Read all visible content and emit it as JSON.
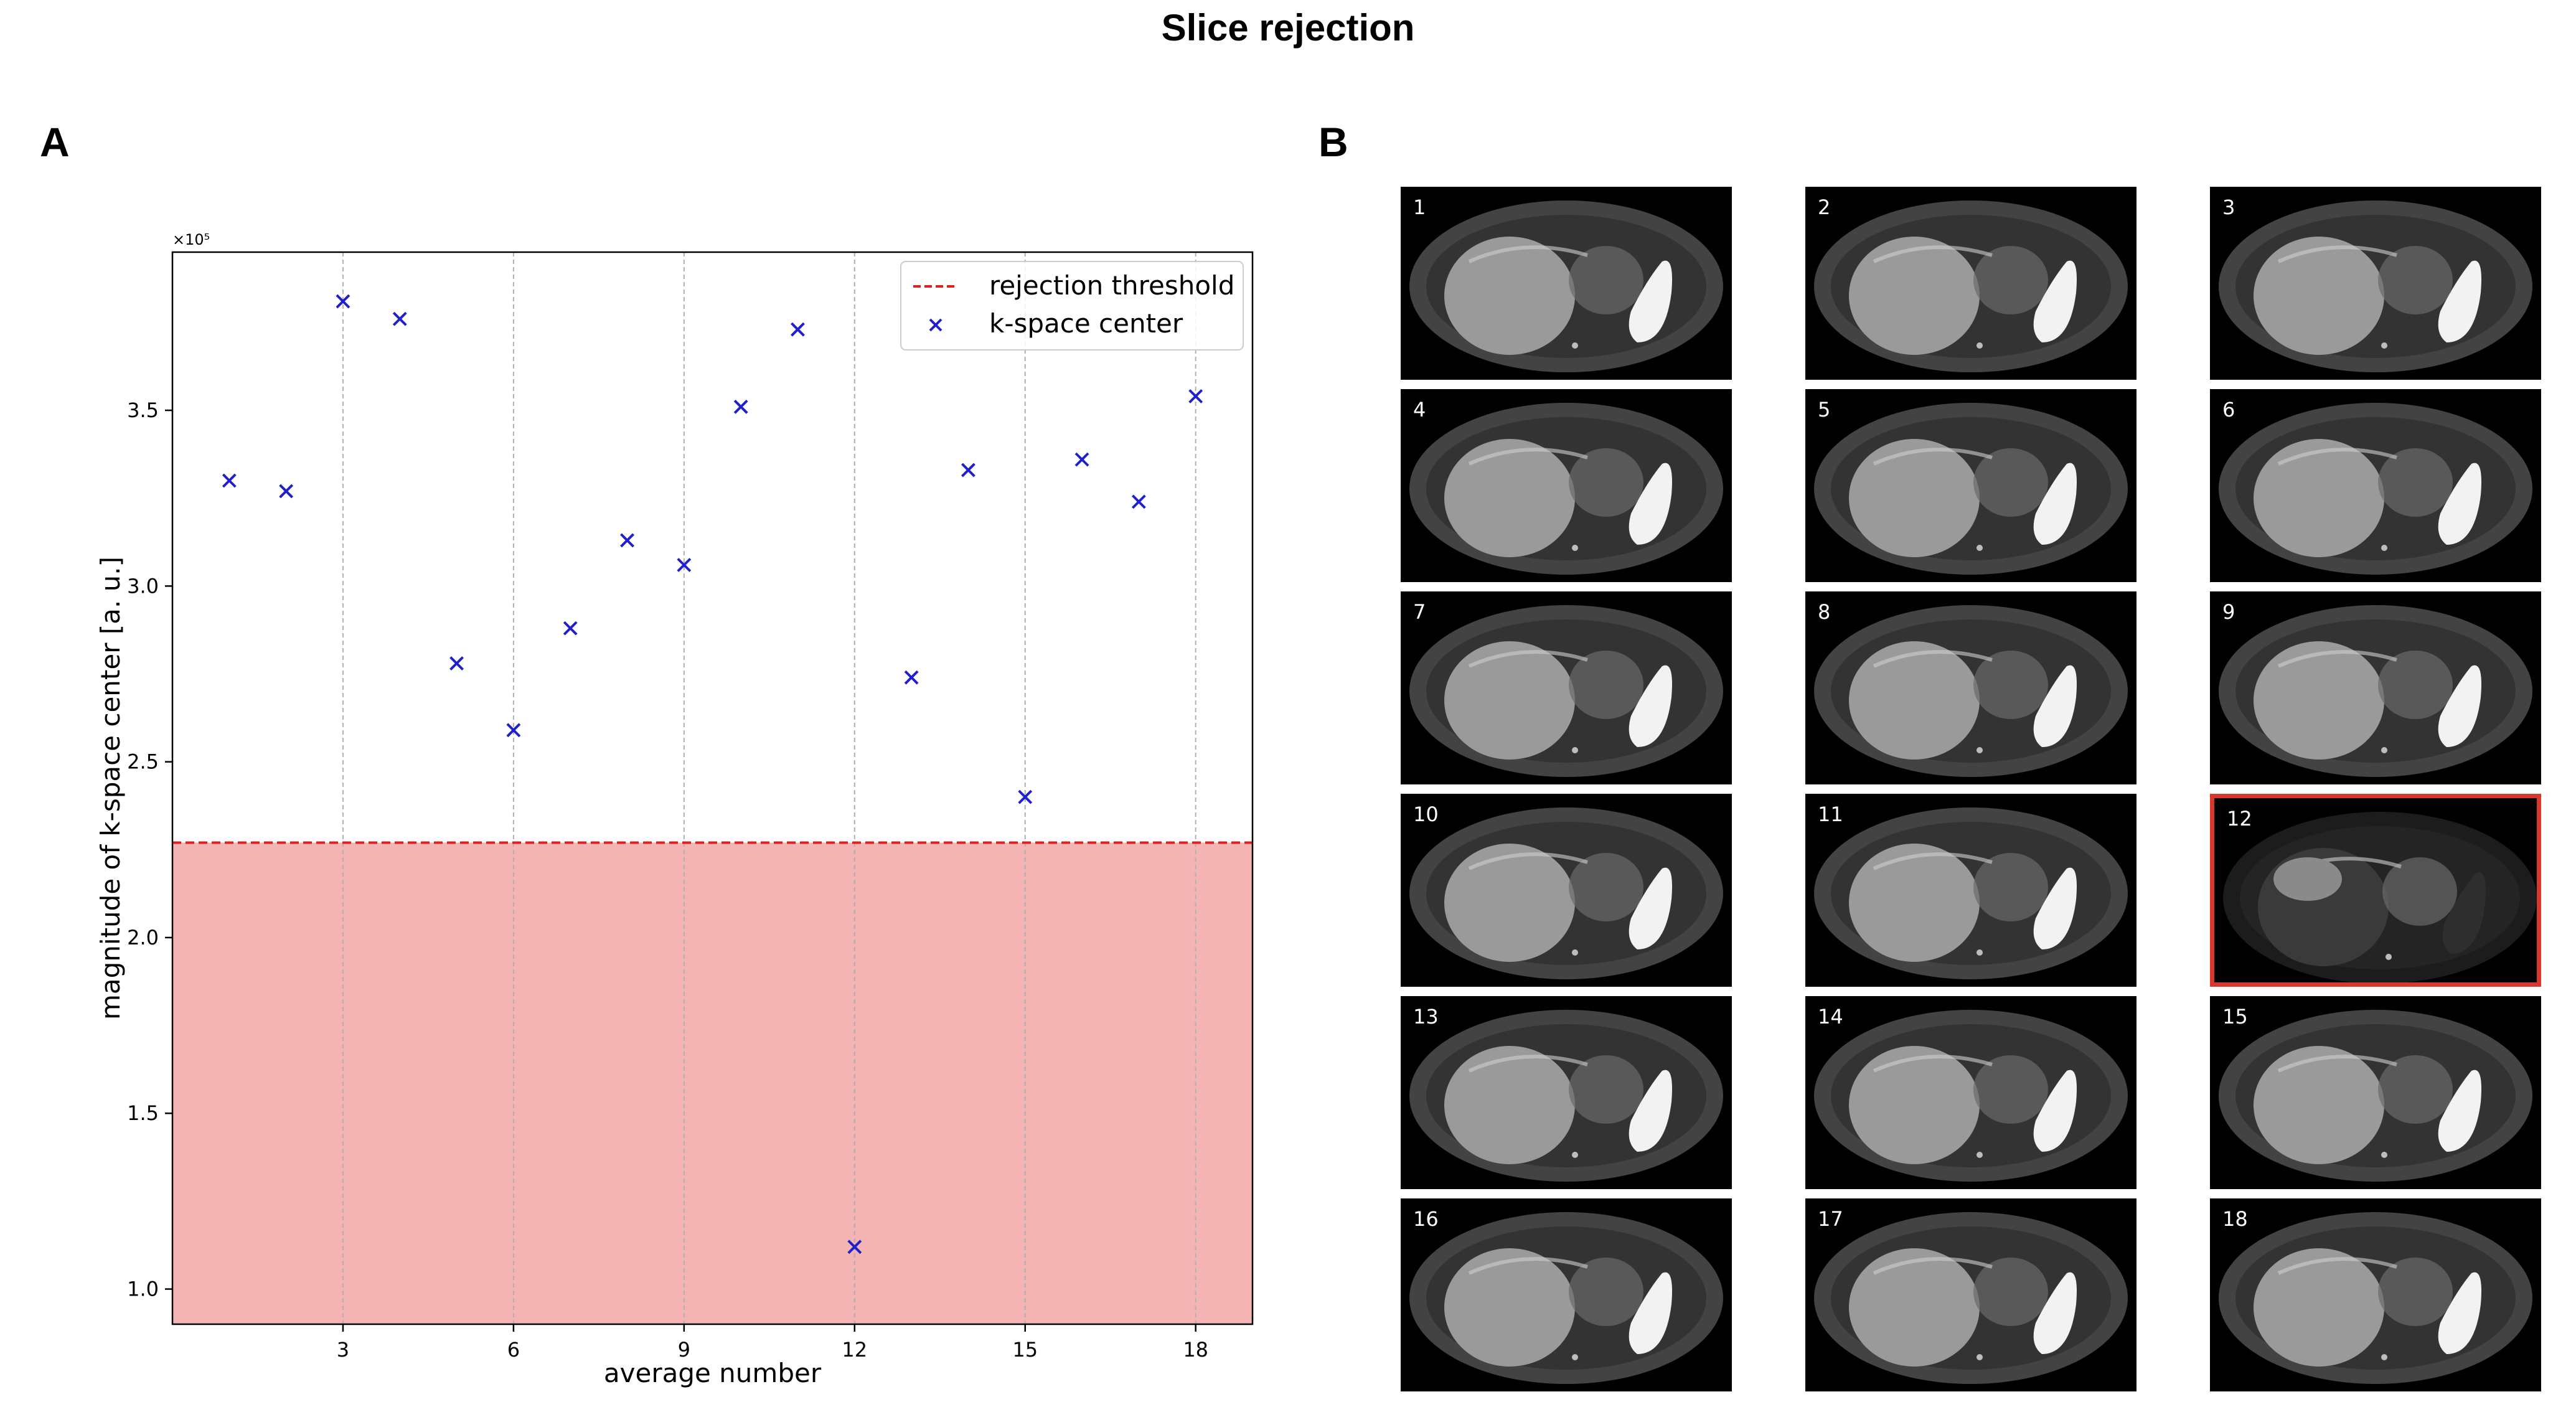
{
  "figure": {
    "title": "Slice rejection",
    "panel_a_label": "A",
    "panel_b_label": "B"
  },
  "chart_data": {
    "type": "scatter",
    "title": "",
    "xlabel": "average number",
    "ylabel": "magnitude of k-space center [a. u.]",
    "offset_text": "×10⁵",
    "y_scale": 100000,
    "xlim": [
      0,
      19
    ],
    "ylim": [
      0.9,
      3.95
    ],
    "x_ticks": [
      3,
      6,
      9,
      12,
      15,
      18
    ],
    "y_ticks": [
      1.0,
      1.5,
      2.0,
      2.5,
      3.0,
      3.5
    ],
    "grid": "vertical dashed at x ticks",
    "threshold": {
      "name": "rejection threshold",
      "value": 2.27,
      "line_color": "#e02020",
      "fill_color": "#f4b4b4"
    },
    "series": [
      {
        "name": "k-space center",
        "marker": "x",
        "color": "#1f1fcc",
        "x": [
          1,
          2,
          3,
          4,
          5,
          6,
          7,
          8,
          9,
          10,
          11,
          12,
          13,
          14,
          15,
          16,
          17,
          18
        ],
        "y": [
          3.3,
          3.27,
          3.81,
          3.76,
          2.78,
          2.59,
          2.88,
          3.13,
          3.06,
          3.51,
          3.73,
          1.12,
          2.74,
          3.33,
          2.4,
          3.36,
          3.24,
          3.54
        ]
      }
    ],
    "legend": {
      "position": "top-right",
      "entries": [
        "rejection threshold",
        "k-space center"
      ]
    }
  },
  "thumbnails": {
    "rejected_index": 12,
    "rejected_color": "#d9372b",
    "items": [
      {
        "label": "1"
      },
      {
        "label": "2"
      },
      {
        "label": "3"
      },
      {
        "label": "4"
      },
      {
        "label": "5"
      },
      {
        "label": "6"
      },
      {
        "label": "7"
      },
      {
        "label": "8"
      },
      {
        "label": "9"
      },
      {
        "label": "10"
      },
      {
        "label": "11"
      },
      {
        "label": "12"
      },
      {
        "label": "13"
      },
      {
        "label": "14"
      },
      {
        "label": "15"
      },
      {
        "label": "16"
      },
      {
        "label": "17"
      },
      {
        "label": "18"
      }
    ]
  }
}
